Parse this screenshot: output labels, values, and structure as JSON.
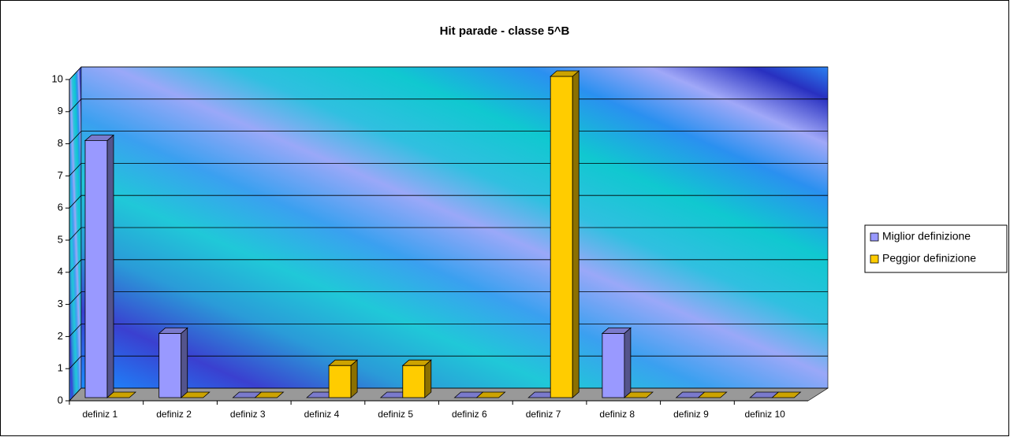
{
  "chart_data": {
    "type": "bar",
    "title": "Hit parade - classe 5^B",
    "categories": [
      "definiz 1",
      "definiz 2",
      "definiz 3",
      "definiz 4",
      "definiz 5",
      "definiz 6",
      "definiz 7",
      "definiz 8",
      "definiz 9",
      "definiz 10"
    ],
    "series": [
      {
        "name": "Miglior definizione",
        "color": "#9999ff",
        "values": [
          8,
          2,
          0,
          0,
          0,
          0,
          0,
          2,
          0,
          0
        ]
      },
      {
        "name": "Peggior definizione",
        "color": "#ffcc00",
        "values": [
          0,
          0,
          0,
          1,
          1,
          0,
          10,
          0,
          0,
          0
        ]
      }
    ],
    "ylim": [
      0,
      10
    ],
    "yticks": [
      0,
      1,
      2,
      3,
      4,
      5,
      6,
      7,
      8,
      9,
      10
    ],
    "grid": true,
    "legend": "right"
  }
}
